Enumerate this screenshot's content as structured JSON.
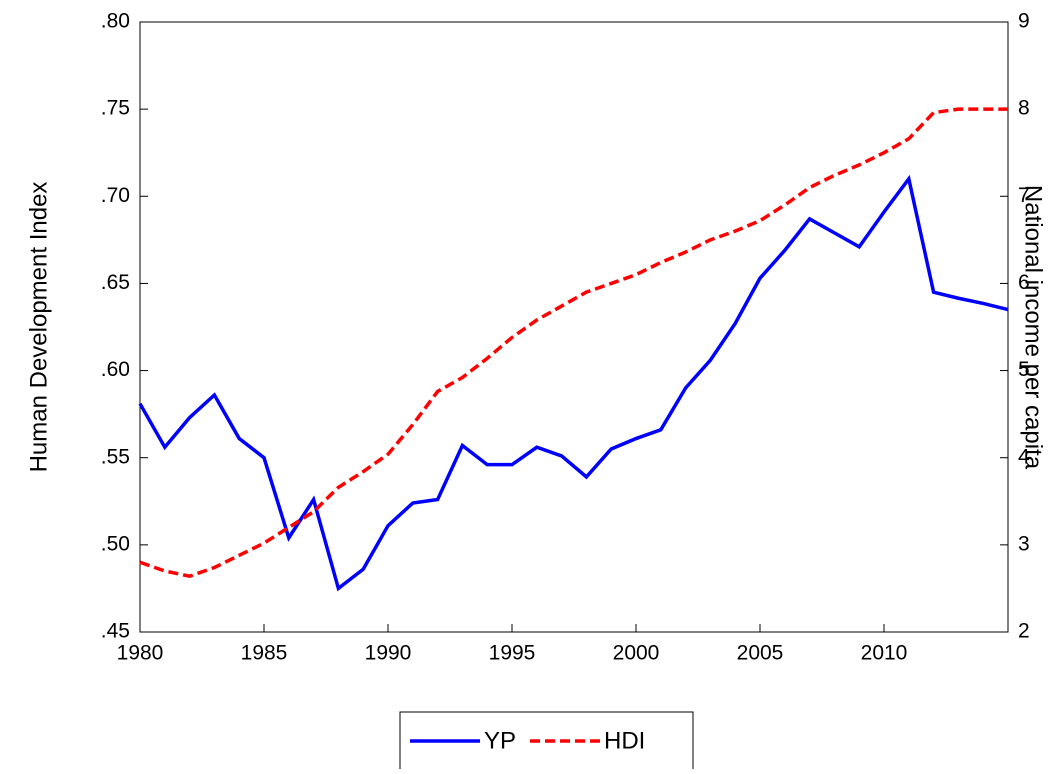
{
  "chart_data": {
    "type": "line",
    "y_label": "Human Development Index",
    "y2_label": "National income per capita",
    "x": [
      1980,
      1981,
      1982,
      1983,
      1984,
      1985,
      1986,
      1987,
      1988,
      1989,
      1990,
      1991,
      1992,
      1993,
      1994,
      1995,
      1996,
      1997,
      1998,
      1999,
      2000,
      2001,
      2002,
      2003,
      2004,
      2005,
      2006,
      2007,
      2008,
      2009,
      2010,
      2011,
      2012,
      2013,
      2014,
      2015
    ],
    "xlim": [
      1980,
      2015
    ],
    "xticks": [
      1980,
      1985,
      1990,
      1995,
      2000,
      2005,
      2010
    ],
    "ylim": [
      0.45,
      0.8
    ],
    "yticks": [
      {
        "value": 0.45,
        "label": ".45"
      },
      {
        "value": 0.5,
        "label": ".50"
      },
      {
        "value": 0.55,
        "label": ".55"
      },
      {
        "value": 0.6,
        "label": ".60"
      },
      {
        "value": 0.65,
        "label": ".65"
      },
      {
        "value": 0.7,
        "label": ".70"
      },
      {
        "value": 0.75,
        "label": ".75"
      },
      {
        "value": 0.8,
        "label": ".80"
      }
    ],
    "y2lim": [
      2,
      9
    ],
    "y2ticks": [
      2,
      3,
      4,
      5,
      6,
      7,
      8,
      9
    ],
    "grid": false,
    "legend": "bottom",
    "series": [
      {
        "name": "YP",
        "color": "#0000ff",
        "dash": false,
        "axis": "y2",
        "values": [
          4.62,
          4.12,
          4.46,
          4.72,
          4.22,
          4.0,
          3.08,
          3.52,
          2.5,
          2.72,
          3.22,
          3.48,
          3.52,
          4.14,
          3.92,
          3.92,
          4.12,
          4.02,
          3.78,
          4.1,
          4.22,
          4.32,
          4.8,
          5.12,
          5.54,
          6.06,
          6.38,
          6.74,
          6.58,
          6.42,
          6.82,
          7.2,
          5.9,
          5.83,
          5.77,
          5.7
        ]
      },
      {
        "name": "HDI",
        "color": "#ff0000",
        "dash": true,
        "values": [
          0.49,
          0.485,
          0.482,
          0.487,
          0.494,
          0.501,
          0.51,
          0.519,
          0.533,
          0.542,
          0.552,
          0.569,
          0.588,
          0.596,
          0.607,
          0.619,
          0.629,
          0.637,
          0.645,
          0.65,
          0.655,
          0.662,
          0.668,
          0.675,
          0.68,
          0.686,
          0.695,
          0.705,
          0.712,
          0.718,
          0.725,
          0.733,
          0.748,
          0.75,
          0.75,
          0.75
        ]
      }
    ]
  }
}
